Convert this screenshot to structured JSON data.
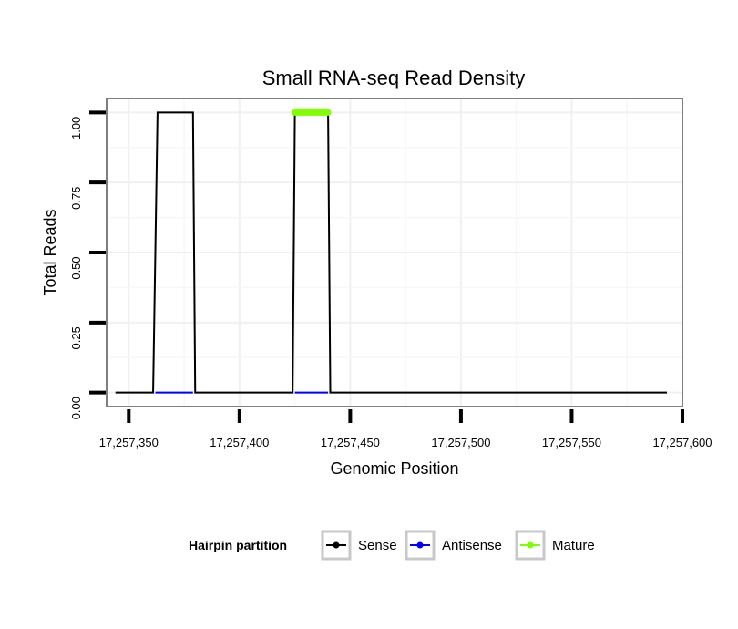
{
  "chart_data": {
    "type": "line",
    "title": "Small RNA-seq Read Density",
    "xlabel": "Genomic Position",
    "ylabel": "Total Reads",
    "xlim": [
      17257340,
      17257600
    ],
    "ylim": [
      -0.05,
      1.05
    ],
    "x_ticks": [
      17257350,
      17257400,
      17257450,
      17257500,
      17257550,
      17257600
    ],
    "x_tick_labels": [
      "17,257,350",
      "17,257,400",
      "17,257,450",
      "17,257,500",
      "17,257,550",
      "17,257,600"
    ],
    "y_ticks": [
      0,
      0.25,
      0.5,
      0.75,
      1.0
    ],
    "y_tick_labels": [
      "0.00",
      "0.25",
      "0.50",
      "0.75",
      "1.00"
    ],
    "grid": true,
    "legend": {
      "title": "Hairpin partition",
      "placement": "bottom",
      "entries": [
        {
          "label": "Sense",
          "color": "#000000"
        },
        {
          "label": "Antisense",
          "color": "#0000ff"
        },
        {
          "label": "Mature",
          "color": "#7fff00"
        }
      ]
    },
    "series": [
      {
        "name": "Sense",
        "color": "#000000",
        "x": [
          17257344,
          17257361,
          17257363,
          17257379,
          17257380,
          17257424,
          17257425,
          17257440,
          17257441,
          17257593
        ],
        "y": [
          0,
          0,
          1,
          1,
          0,
          0,
          1,
          1,
          0,
          0
        ]
      },
      {
        "name": "Antisense",
        "color": "#0000ff",
        "x": [
          17257362,
          17257379
        ],
        "y": [
          0,
          0
        ]
      },
      {
        "name": "Antisense",
        "color": "#0000ff",
        "x": [
          17257425,
          17257440
        ],
        "y": [
          0,
          0
        ]
      },
      {
        "name": "Mature",
        "color": "#7fff00",
        "x": [
          17257425,
          17257440
        ],
        "y": [
          1,
          1
        ]
      }
    ]
  }
}
